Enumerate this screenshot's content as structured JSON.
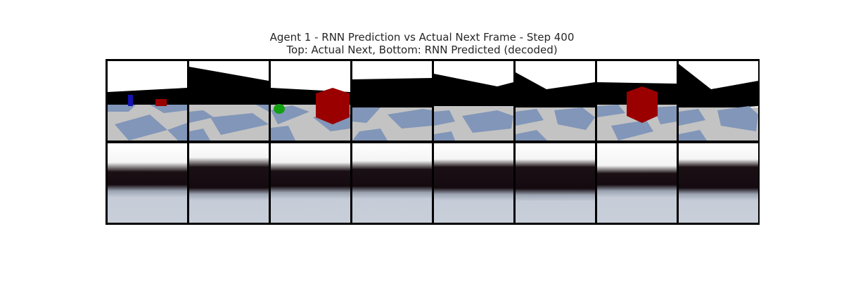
{
  "figure": {
    "title": "Agent 1 - RNN Prediction vs Actual Next Frame - Step 400",
    "subtitle": "Top: Actual Next, Bottom: RNN Predicted (decoded)"
  },
  "grid": {
    "rows": [
      "Actual Next",
      "RNN Predicted (decoded)"
    ],
    "columns": 8
  },
  "frames": {
    "actual": [
      {
        "objects": [
          "blue-box",
          "red-box-small"
        ]
      },
      {
        "objects": []
      },
      {
        "objects": [
          "green-ball",
          "red-cube-large"
        ]
      },
      {
        "objects": []
      },
      {
        "objects": []
      },
      {
        "objects": []
      },
      {
        "objects": [
          "red-cube-large"
        ]
      },
      {
        "objects": []
      }
    ],
    "predicted_count": 8
  },
  "colors": {
    "sky": "#ffffff",
    "wall": "#000000",
    "floor_light": "#c3c3c3",
    "floor_blue": "#8196b8",
    "red_object": "#9a0000",
    "green_object": "#12a012",
    "blue_object": "#1414b4"
  }
}
